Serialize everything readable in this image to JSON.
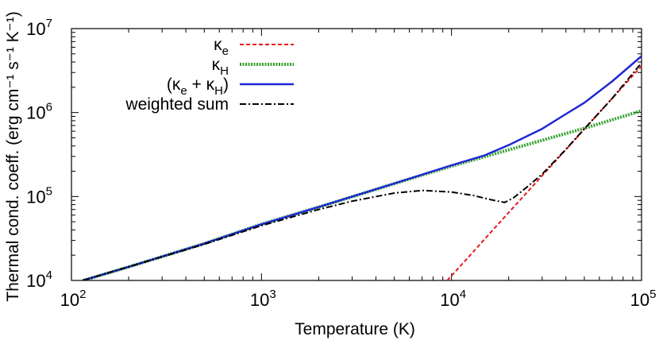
{
  "chart_data": {
    "type": "line",
    "title": "",
    "xlabel": "Temperature (K)",
    "ylabel": "Thermal cond. coeff. (erg cm⁻¹ s⁻¹ K⁻¹)",
    "xscale": "log",
    "yscale": "log",
    "xlim": [
      100,
      100000
    ],
    "ylim": [
      10000,
      10000000
    ],
    "grid": false,
    "legend_position": "top-left",
    "x_ticks": [
      {
        "base": "10",
        "exp": "2",
        "value": 100
      },
      {
        "base": "10",
        "exp": "3",
        "value": 1000
      },
      {
        "base": "10",
        "exp": "4",
        "value": 10000
      },
      {
        "base": "10",
        "exp": "5",
        "value": 100000
      }
    ],
    "y_ticks": [
      {
        "base": "10",
        "exp": "4",
        "value": 10000
      },
      {
        "base": "10",
        "exp": "5",
        "value": 100000
      },
      {
        "base": "10",
        "exp": "6",
        "value": 1000000
      },
      {
        "base": "10",
        "exp": "7",
        "value": 10000000
      }
    ],
    "series": [
      {
        "name": "κe",
        "legend_base": "κ",
        "legend_sub": "e",
        "color": "#e41a1c",
        "dash": "5,3",
        "width": 2,
        "x": [
          9500,
          12000,
          15000,
          20000,
          30000,
          40000,
          50000,
          60000,
          70000,
          80000,
          90000,
          100000
        ],
        "y": [
          10000,
          17900,
          31400,
          64400,
          177000,
          363000,
          634000,
          1000000,
          1470000,
          2050000,
          2750000,
          3580000
        ]
      },
      {
        "name": "κH",
        "legend_base": "κ",
        "legend_sub": "H",
        "color": "#33a02c",
        "dash": "2,1.5",
        "width": 4,
        "x": [
          115,
          200,
          500,
          1000,
          2000,
          5000,
          10000,
          20000,
          30000,
          50000,
          70000,
          100000
        ],
        "y": [
          10000,
          14500,
          27500,
          46700,
          74800,
          142000,
          230000,
          360000,
          467000,
          650000,
          820000,
          1050000
        ]
      },
      {
        "name": "(κe + κH)",
        "legend_prefix": "(",
        "legend_suffix": ")",
        "color": "#1f28d4",
        "dash": "",
        "width": 2.5,
        "x": [
          115,
          200,
          500,
          1000,
          2000,
          5000,
          10000,
          15000,
          20000,
          30000,
          40000,
          50000,
          70000,
          100000
        ],
        "y": [
          10000,
          14500,
          27500,
          46700,
          74900,
          143000,
          235000,
          310000,
          410000,
          640000,
          960000,
          1310000,
          2350000,
          4700000
        ]
      },
      {
        "name": "weighted sum",
        "legend_base": "weighted sum",
        "color": "#000000",
        "dash": "8,3,2,3",
        "width": 2,
        "x": [
          115,
          200,
          500,
          1000,
          2000,
          3000,
          5000,
          7000,
          10000,
          13000,
          16000,
          19000,
          21000,
          25000,
          30000,
          40000,
          50000,
          70000,
          100000
        ],
        "y": [
          10000,
          14500,
          27000,
          45000,
          70000,
          88000,
          110000,
          118000,
          113000,
          103000,
          92000,
          85000,
          95000,
          130000,
          185000,
          365000,
          640000,
          1470000,
          3900000
        ]
      }
    ]
  }
}
